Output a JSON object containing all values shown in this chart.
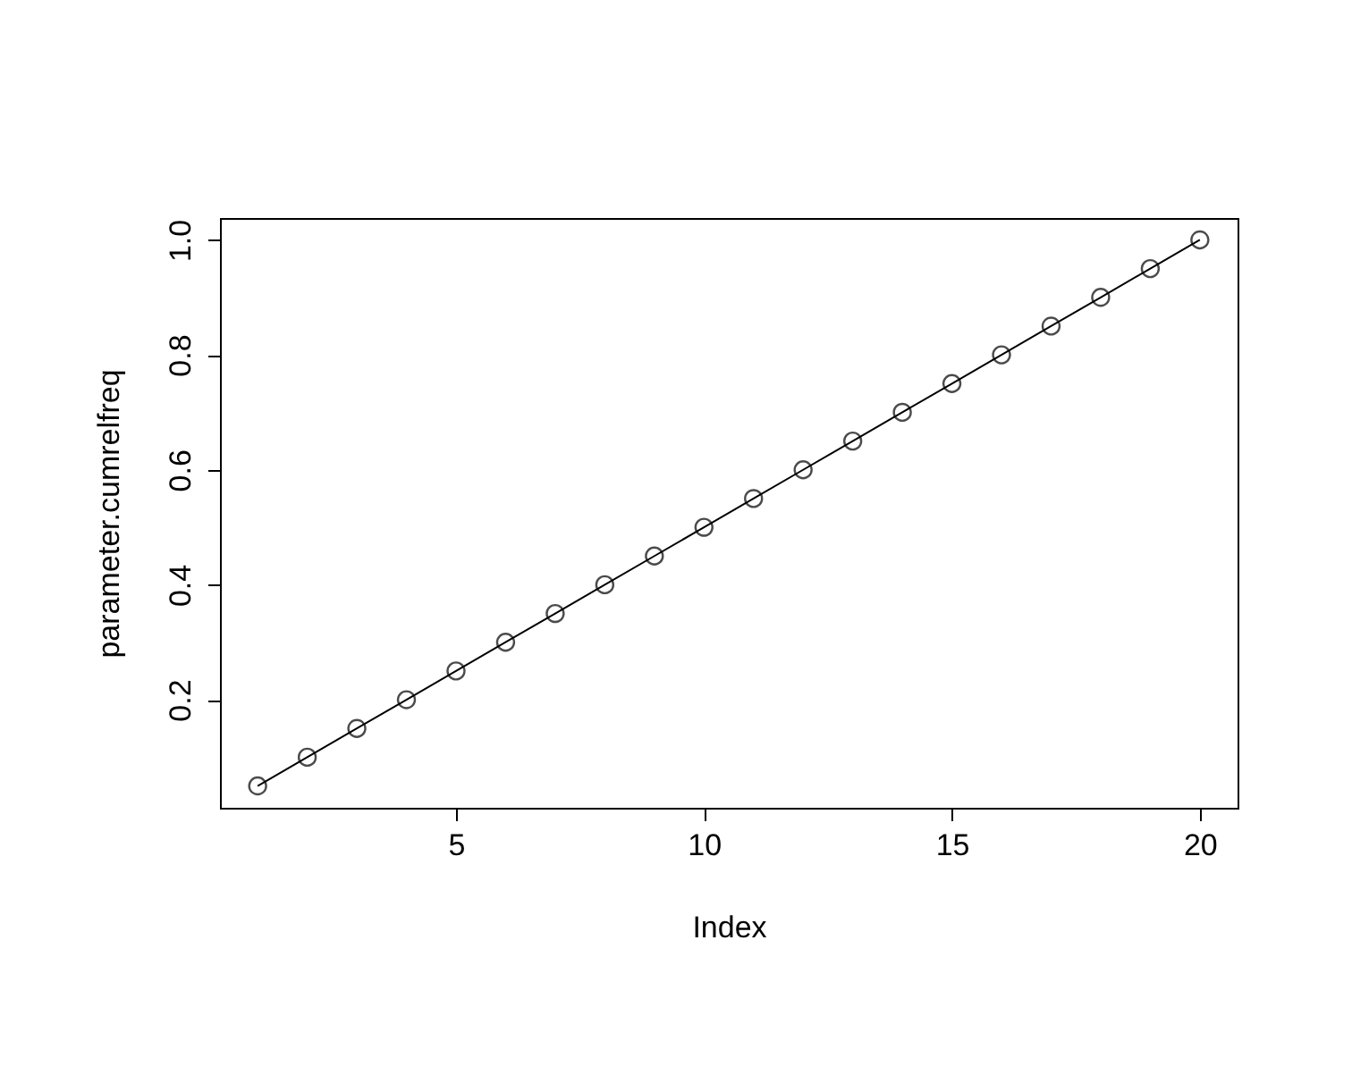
{
  "chart_data": {
    "type": "line",
    "xlabel": "Index",
    "ylabel": "parameter.cumrelfreq",
    "x": [
      1,
      2,
      3,
      4,
      5,
      6,
      7,
      8,
      9,
      10,
      11,
      12,
      13,
      14,
      15,
      16,
      17,
      18,
      19,
      20
    ],
    "values": [
      0.05,
      0.1,
      0.15,
      0.2,
      0.25,
      0.3,
      0.35,
      0.4,
      0.45,
      0.5,
      0.55,
      0.6,
      0.65,
      0.7,
      0.75,
      0.8,
      0.85,
      0.9,
      0.95,
      1.0
    ],
    "color": "#000000",
    "marker": "circle",
    "line_style": "solid",
    "xlim": [
      0.24,
      20.76
    ],
    "ylim": [
      0.012,
      1.038
    ],
    "xticks": [
      5,
      10,
      15,
      20
    ],
    "yticks": [
      0.2,
      0.4,
      0.6,
      0.8,
      {
        "value": 1,
        "label": "1.0"
      }
    ]
  }
}
